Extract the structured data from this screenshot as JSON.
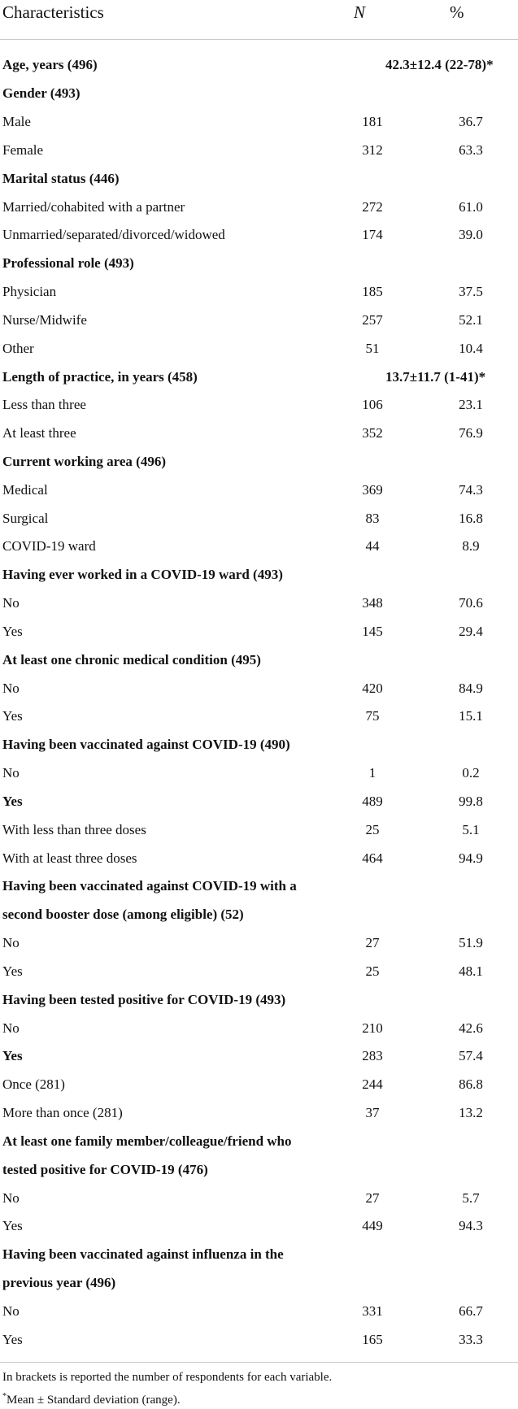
{
  "header": {
    "col1": "Characteristics",
    "col2": "N",
    "col3": "%"
  },
  "rows": [
    {
      "label": "Age, years (496)",
      "bold": true,
      "span": "42.3±12.4 (22-78)*"
    },
    {
      "label": "Gender (493)",
      "bold": true
    },
    {
      "label": "Male",
      "n": "181",
      "p": "36.7"
    },
    {
      "label": "Female",
      "n": "312",
      "p": "63.3"
    },
    {
      "label": "Marital status (446)",
      "bold": true
    },
    {
      "label": "Married/cohabited with a partner",
      "n": "272",
      "p": "61.0"
    },
    {
      "label": "Unmarried/separated/divorced/widowed",
      "n": "174",
      "p": "39.0"
    },
    {
      "label": "Professional role (493)",
      "bold": true
    },
    {
      "label": "Physician",
      "n": "185",
      "p": "37.5"
    },
    {
      "label": "Nurse/Midwife",
      "n": "257",
      "p": "52.1"
    },
    {
      "label": "Other",
      "n": "51",
      "p": "10.4"
    },
    {
      "label": "Length of practice, in years (458)",
      "bold": true,
      "span": "13.7±11.7 (1-41)*"
    },
    {
      "label": "Less than three",
      "n": "106",
      "p": "23.1"
    },
    {
      "label": "At least three",
      "n": "352",
      "p": "76.9"
    },
    {
      "label": "Current working area (496)",
      "bold": true
    },
    {
      "label": "Medical",
      "n": "369",
      "p": "74.3"
    },
    {
      "label": "Surgical",
      "n": "83",
      "p": "16.8"
    },
    {
      "label": "COVID-19 ward",
      "n": "44",
      "p": "8.9"
    },
    {
      "label": "Having ever worked in a COVID-19 ward (493)",
      "bold": true
    },
    {
      "label": "No",
      "n": "348",
      "p": "70.6"
    },
    {
      "label": "Yes",
      "n": "145",
      "p": "29.4"
    },
    {
      "label": "At least one chronic medical condition (495)",
      "bold": true
    },
    {
      "label": "No",
      "n": "420",
      "p": "84.9"
    },
    {
      "label": "Yes",
      "n": "75",
      "p": "15.1"
    },
    {
      "label": "Having been vaccinated against COVID-19 (490)",
      "bold": true
    },
    {
      "label": "No",
      "n": "1",
      "p": "0.2"
    },
    {
      "label": "Yes",
      "n": "489",
      "p": "99.8",
      "labelBold": true
    },
    {
      "label": "With less than three doses",
      "n": "25",
      "p": "5.1"
    },
    {
      "label": "With at least three doses",
      "n": "464",
      "p": "94.9"
    },
    {
      "label": "Having been vaccinated against COVID-19 with a",
      "bold": true
    },
    {
      "label": "second booster dose (among eligible) (52)",
      "bold": true
    },
    {
      "label": "No",
      "n": "27",
      "p": "51.9"
    },
    {
      "label": "Yes",
      "n": "25",
      "p": "48.1"
    },
    {
      "label": "Having been tested positive for COVID-19 (493)",
      "bold": true
    },
    {
      "label": "No",
      "n": "210",
      "p": "42.6"
    },
    {
      "label": "Yes",
      "n": "283",
      "p": "57.4",
      "labelBold": true
    },
    {
      "label": "Once (281)",
      "n": "244",
      "p": "86.8"
    },
    {
      "label": "More than once (281)",
      "n": "37",
      "p": "13.2"
    },
    {
      "label": "At least one family member/colleague/friend who",
      "bold": true
    },
    {
      "label": "tested positive for COVID-19 (476)",
      "bold": true
    },
    {
      "label": "No",
      "n": "27",
      "p": "5.7"
    },
    {
      "label": "Yes",
      "n": "449",
      "p": "94.3"
    },
    {
      "label": "Having been vaccinated against influenza in the",
      "bold": true
    },
    {
      "label": "previous year (496)",
      "bold": true
    },
    {
      "label": "No",
      "n": "331",
      "p": "66.7"
    },
    {
      "label": "Yes",
      "n": "165",
      "p": "33.3"
    }
  ],
  "footnotes": {
    "line1": "In brackets is reported the number of respondents for each variable.",
    "line2_mark": "*",
    "line2_text": "Mean ± Standard deviation (range)."
  }
}
